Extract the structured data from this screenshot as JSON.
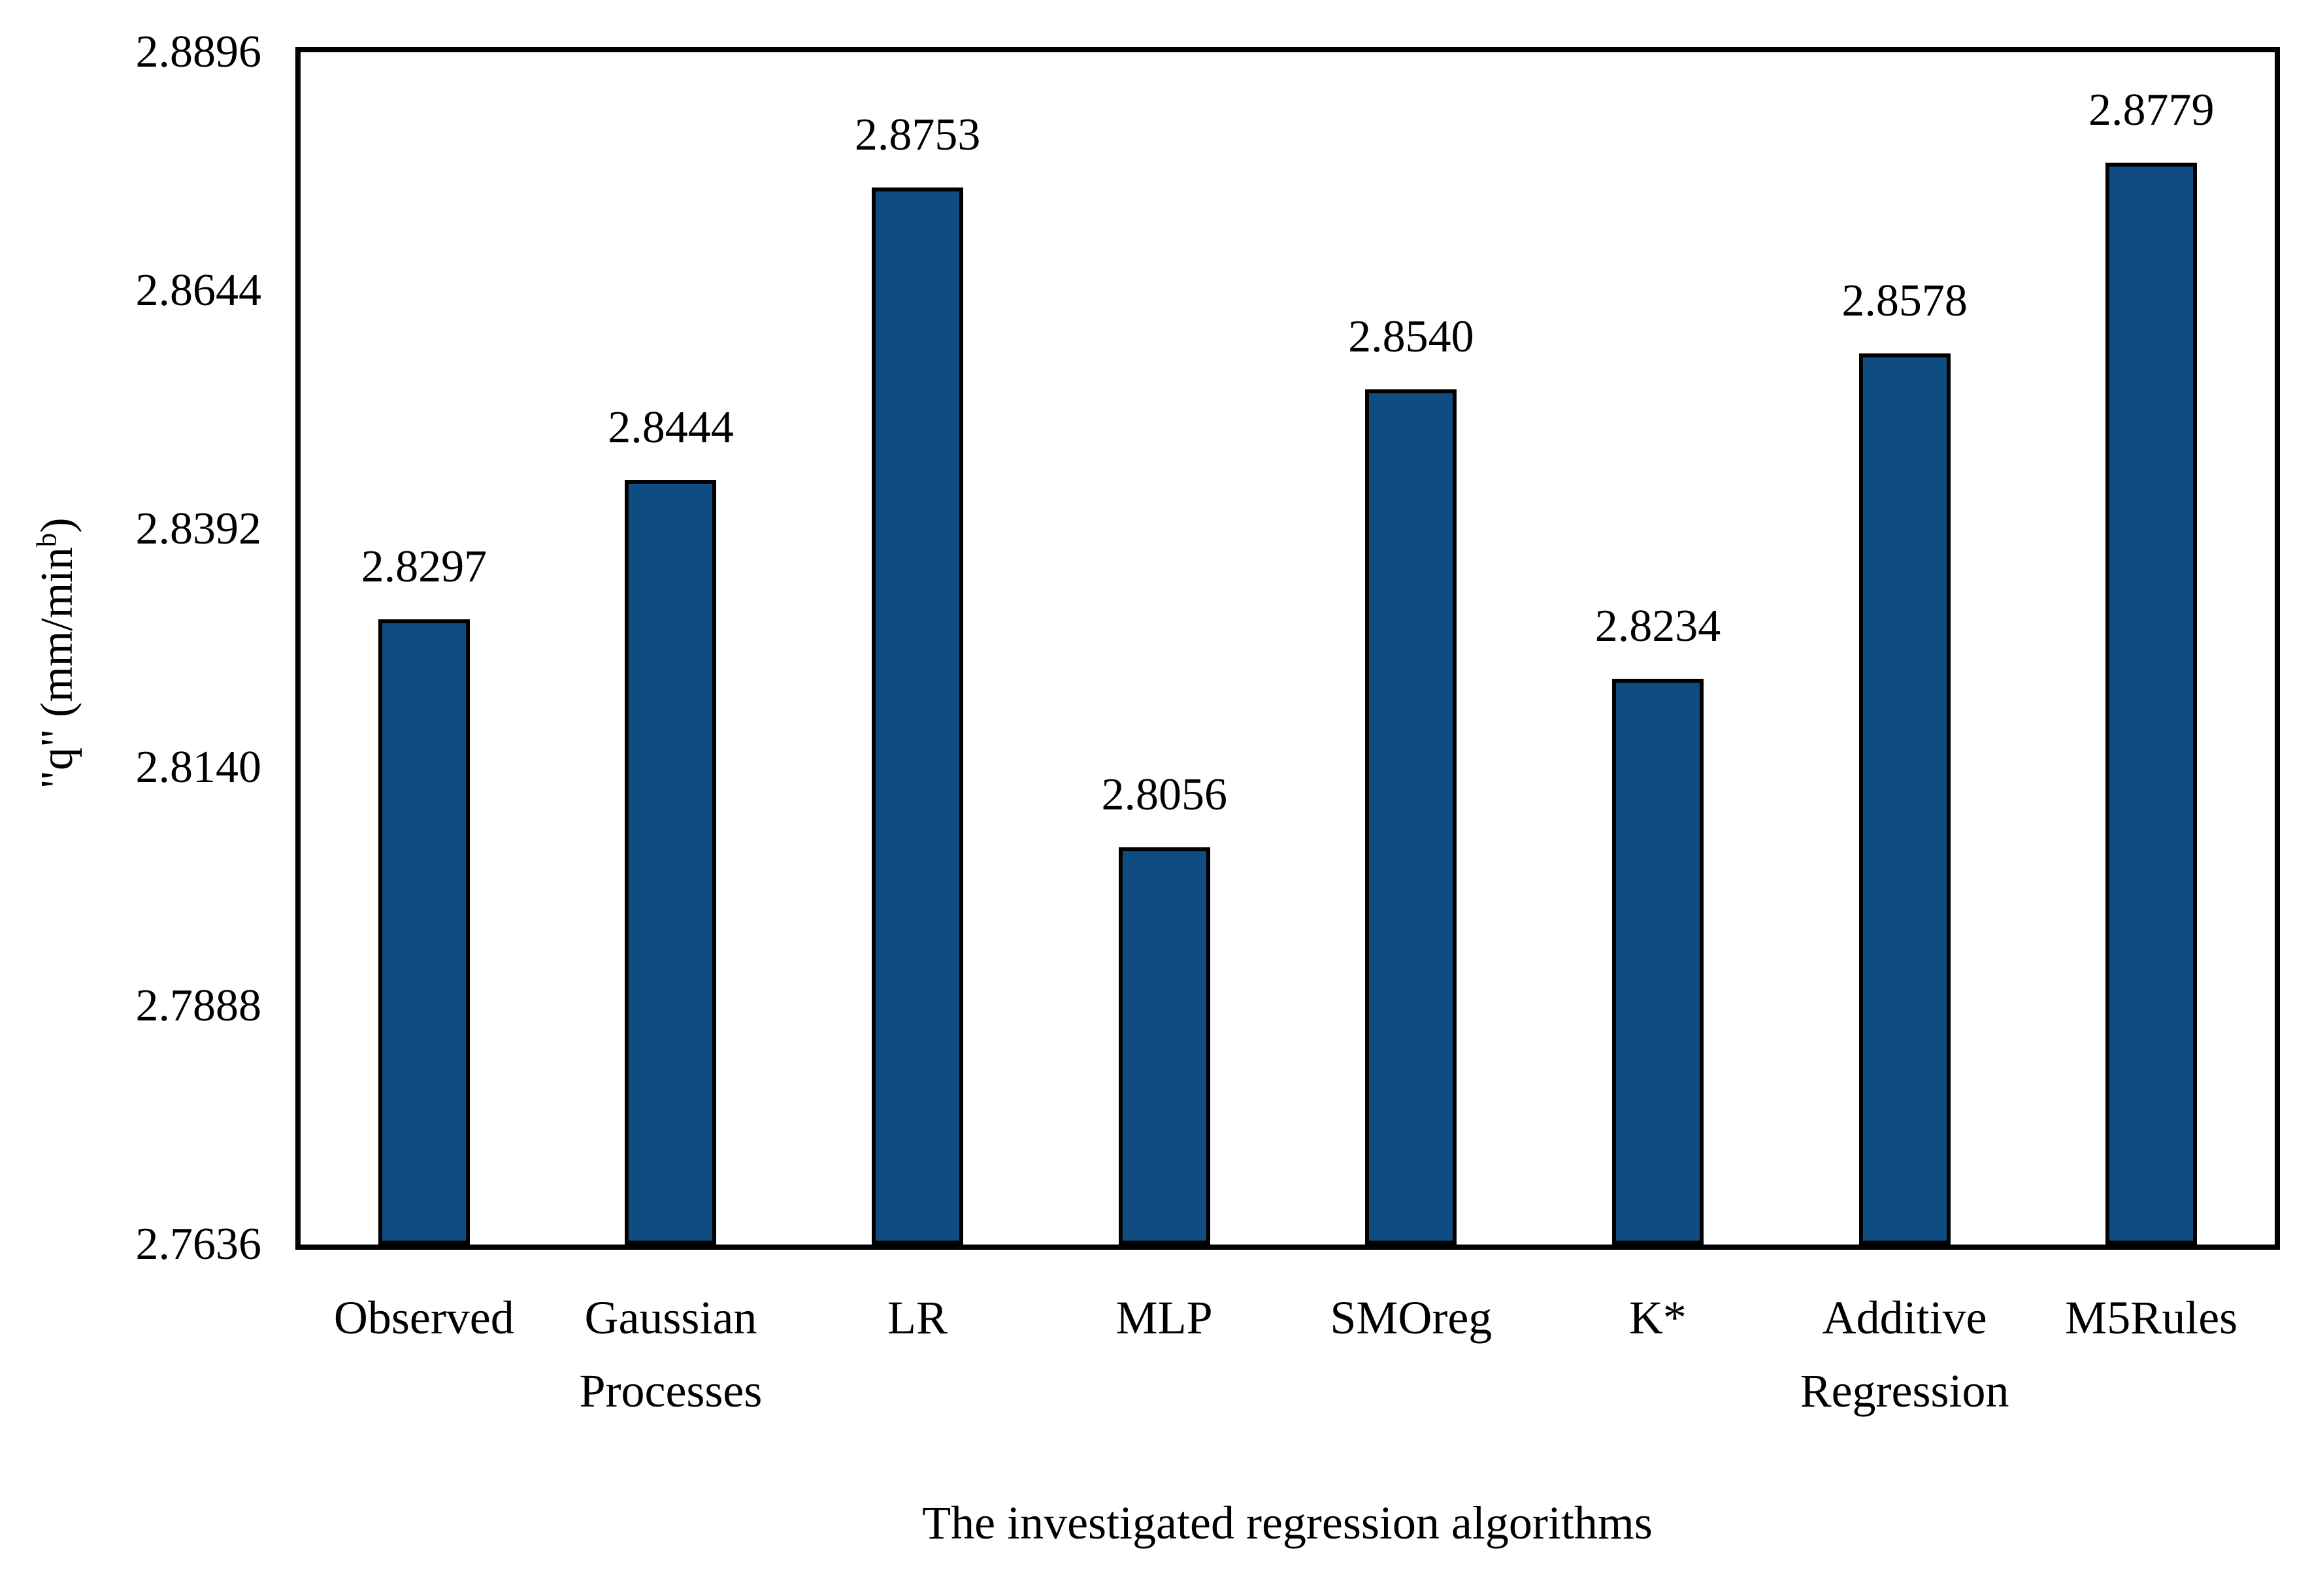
{
  "chart_data": {
    "type": "bar",
    "title": "",
    "categories": [
      "Observed",
      "Gaussian\nProcesses",
      "LR",
      "MLP",
      "SMOreg",
      "K*",
      "Additive\nRegression",
      "M5Rules"
    ],
    "values": [
      2.8297,
      2.8444,
      2.8753,
      2.8056,
      2.854,
      2.8234,
      2.8578,
      2.8779
    ],
    "value_labels": [
      "2.8297",
      "2.8444",
      "2.8753",
      "2.8056",
      "2.8540",
      "2.8234",
      "2.8578",
      "2.8779"
    ],
    "xlabel": "The investigated regression algorithms",
    "ylabel": "\"q\" (mm/min^b)",
    "ylabel_parts": {
      "main": "\"q\" (mm/min",
      "sup": "b",
      "end": ")"
    },
    "ylim": [
      2.7636,
      2.8896
    ],
    "ytick_labels": [
      "2.8896",
      "2.8644",
      "2.8392",
      "2.8140",
      "2.7888",
      "2.7636"
    ],
    "ytick_values": [
      2.8896,
      2.8644,
      2.8392,
      2.814,
      2.7888,
      2.7636
    ],
    "grid": false,
    "legend": null,
    "bar_color": "#0f4c81",
    "bar_border_color": "#000000",
    "axis_color": "#000000"
  }
}
